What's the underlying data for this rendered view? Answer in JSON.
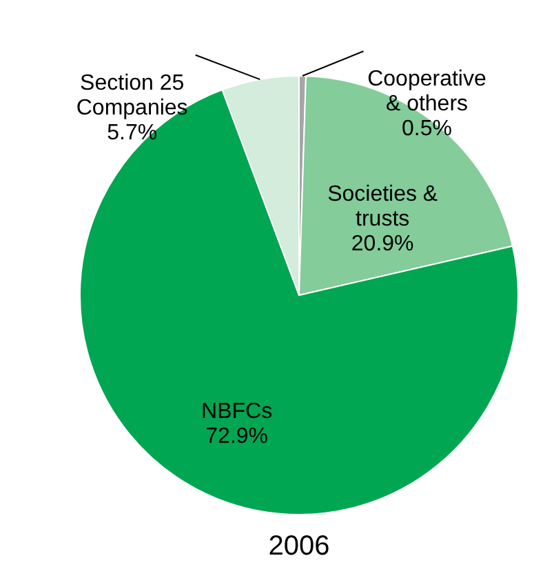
{
  "chart_data": {
    "type": "pie",
    "title": "2006",
    "categories": [
      "Cooperative & others",
      "Societies & trusts",
      "NBFCs",
      "Section 25 Companies"
    ],
    "values": [
      0.5,
      20.9,
      72.9,
      5.7
    ],
    "value_labels": [
      "0.5%",
      "20.9%",
      "72.9%",
      "5.7%"
    ],
    "colors": [
      "#a6a6a6",
      "#84cc9a",
      "#00a651",
      "#d3ecdc"
    ]
  }
}
